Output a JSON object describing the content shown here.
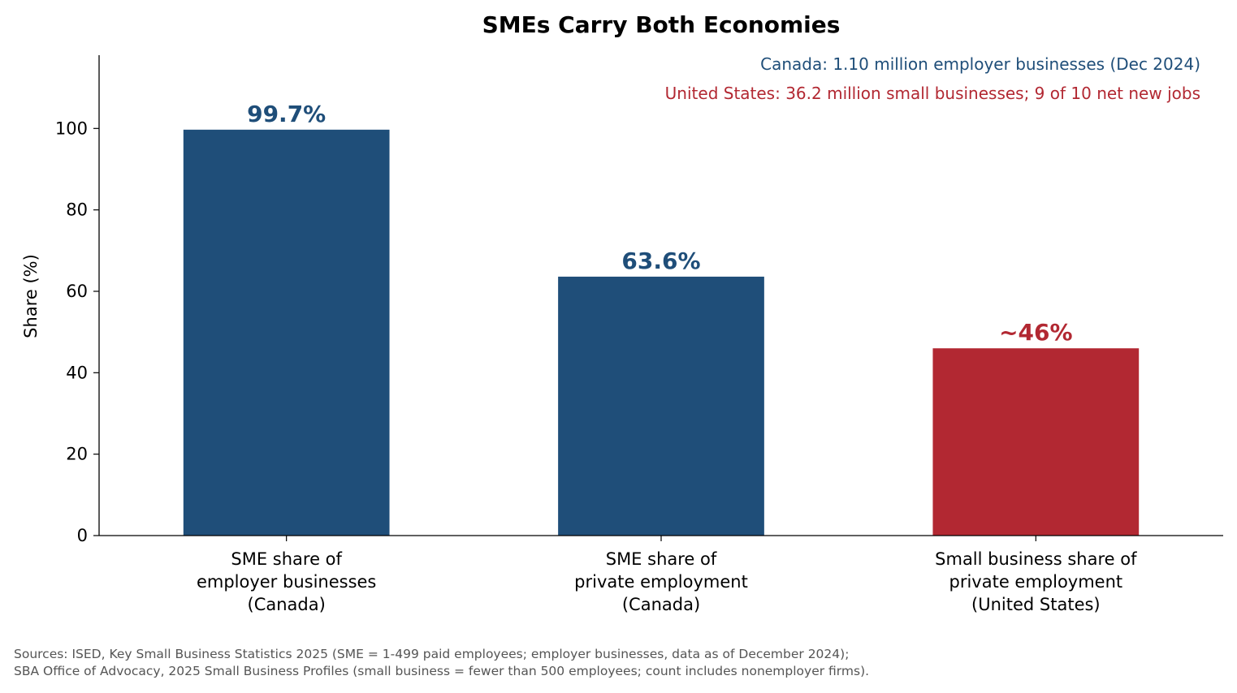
{
  "chart_data": {
    "type": "bar",
    "title": "SMEs Carry Both Economies",
    "ylabel": "Share (%)",
    "ylim": [
      0,
      118
    ],
    "yticks": [
      0,
      20,
      40,
      60,
      80,
      100
    ],
    "grid": false,
    "categories": [
      [
        "SME share of",
        "employer businesses",
        "(Canada)"
      ],
      [
        "SME share of",
        "private employment",
        "(Canada)"
      ],
      [
        "Small business share of",
        "private employment",
        "(United States)"
      ]
    ],
    "values": [
      99.7,
      63.6,
      46
    ],
    "data_labels": [
      "99.7%",
      "63.6%",
      "~46%"
    ],
    "bar_colors": [
      "#1f4e79",
      "#1f4e79",
      "#b22832"
    ],
    "annotations": [
      {
        "text": "Canada: 1.10 million employer businesses (Dec 2024)",
        "color": "#1f4e79",
        "position": "top-right"
      },
      {
        "text": "United States: 36.2 million small businesses; 9 of 10 net new jobs",
        "color": "#b22832",
        "position": "top-right"
      }
    ]
  },
  "footer": {
    "sources_line1": "Sources: ISED, Key Small Business Statistics 2025 (SME = 1-499 paid employees; employer businesses, data as of December 2024);",
    "sources_line2": "SBA Office of Advocacy, 2025 Small Business Profiles (small business = fewer than 500 employees; count includes nonemployer firms)."
  }
}
